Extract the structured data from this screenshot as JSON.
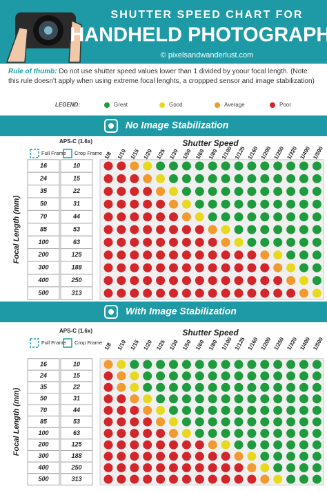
{
  "header": {
    "line1": "SHUTTER SPEED CHART FOR",
    "line2": "HANDHELD PHOTOGRAPHY",
    "website": "© pixelsandwanderlust.com"
  },
  "rule": {
    "label": "Rule of thumb:",
    "text": "Do not use shutter speed values lower than 1 divided by yoour focal length. (Note: this rule doesn't apply when using extreme focal lenghts, a croppped sensor and image stabilization)"
  },
  "legend": {
    "label": "LEGEND:",
    "items": [
      {
        "name": "Great",
        "color": "#1e9b3c"
      },
      {
        "name": "Good",
        "color": "#e8d81e"
      },
      {
        "name": "Average",
        "color": "#f29a2e"
      },
      {
        "name": "Poor",
        "color": "#d3262b"
      }
    ]
  },
  "sections": [
    {
      "title": "No Image Stabilization",
      "aps": "APS-C (1.6x)",
      "full": "Full Frame",
      "crop": "Crop Frame",
      "speed": "Shutter Speed",
      "axis": "Focal Length (mm)",
      "speeds": [
        "1/8",
        "1/10",
        "1/15",
        "1/20",
        "1/25",
        "1/30",
        "1/50",
        "1/60",
        "1/80",
        "1/100",
        "1/125",
        "1/160",
        "1/200",
        "1/250",
        "1/320",
        "1/400",
        "1/500"
      ],
      "rows": [
        {
          "full": "16",
          "crop": "10",
          "ratings": [
            3,
            3,
            2,
            1,
            0,
            0,
            0,
            0,
            0,
            0,
            0,
            0,
            0,
            0,
            0,
            0,
            0
          ]
        },
        {
          "full": "24",
          "crop": "15",
          "ratings": [
            3,
            3,
            3,
            2,
            1,
            0,
            0,
            0,
            0,
            0,
            0,
            0,
            0,
            0,
            0,
            0,
            0
          ]
        },
        {
          "full": "35",
          "crop": "22",
          "ratings": [
            3,
            3,
            3,
            3,
            2,
            1,
            0,
            0,
            0,
            0,
            0,
            0,
            0,
            0,
            0,
            0,
            0
          ]
        },
        {
          "full": "50",
          "crop": "31",
          "ratings": [
            3,
            3,
            3,
            3,
            3,
            2,
            1,
            0,
            0,
            0,
            0,
            0,
            0,
            0,
            0,
            0,
            0
          ]
        },
        {
          "full": "70",
          "crop": "44",
          "ratings": [
            3,
            3,
            3,
            3,
            3,
            3,
            2,
            1,
            0,
            0,
            0,
            0,
            0,
            0,
            0,
            0,
            0
          ]
        },
        {
          "full": "85",
          "crop": "53",
          "ratings": [
            3,
            3,
            3,
            3,
            3,
            3,
            3,
            3,
            2,
            1,
            0,
            0,
            0,
            0,
            0,
            0,
            0
          ]
        },
        {
          "full": "100",
          "crop": "63",
          "ratings": [
            3,
            3,
            3,
            3,
            3,
            3,
            3,
            3,
            3,
            2,
            1,
            0,
            0,
            0,
            0,
            0,
            0
          ]
        },
        {
          "full": "200",
          "crop": "125",
          "ratings": [
            3,
            3,
            3,
            3,
            3,
            3,
            3,
            3,
            3,
            3,
            3,
            3,
            2,
            1,
            0,
            0,
            0
          ]
        },
        {
          "full": "300",
          "crop": "188",
          "ratings": [
            3,
            3,
            3,
            3,
            3,
            3,
            3,
            3,
            3,
            3,
            3,
            3,
            3,
            2,
            1,
            0,
            0
          ]
        },
        {
          "full": "400",
          "crop": "250",
          "ratings": [
            3,
            3,
            3,
            3,
            3,
            3,
            3,
            3,
            3,
            3,
            3,
            3,
            3,
            3,
            2,
            1,
            0
          ]
        },
        {
          "full": "500",
          "crop": "313",
          "ratings": [
            3,
            3,
            3,
            3,
            3,
            3,
            3,
            3,
            3,
            3,
            3,
            3,
            3,
            3,
            3,
            2,
            1
          ]
        }
      ]
    },
    {
      "title": "With Image Stabilization",
      "aps": "APS-C (1.6x)",
      "full": "Full Frame",
      "crop": "Crop Frame",
      "speed": "Shutter Speed",
      "axis": "Focal Length (mm)",
      "speeds": [
        "1/8",
        "1/10",
        "1/15",
        "1/20",
        "1/25",
        "1/30",
        "1/50",
        "1/60",
        "1/80",
        "1/100",
        "1/125",
        "1/160",
        "1/200",
        "1/250",
        "1/320",
        "1/400",
        "1/500"
      ],
      "rows": [
        {
          "full": "16",
          "crop": "10",
          "ratings": [
            2,
            1,
            0,
            0,
            0,
            0,
            0,
            0,
            0,
            0,
            0,
            0,
            0,
            0,
            0,
            0,
            0
          ]
        },
        {
          "full": "24",
          "crop": "15",
          "ratings": [
            3,
            2,
            1,
            0,
            0,
            0,
            0,
            0,
            0,
            0,
            0,
            0,
            0,
            0,
            0,
            0,
            0
          ]
        },
        {
          "full": "35",
          "crop": "22",
          "ratings": [
            3,
            2,
            1,
            0,
            0,
            0,
            0,
            0,
            0,
            0,
            0,
            0,
            0,
            0,
            0,
            0,
            0
          ]
        },
        {
          "full": "50",
          "crop": "31",
          "ratings": [
            3,
            3,
            2,
            1,
            0,
            0,
            0,
            0,
            0,
            0,
            0,
            0,
            0,
            0,
            0,
            0,
            0
          ]
        },
        {
          "full": "70",
          "crop": "44",
          "ratings": [
            3,
            3,
            3,
            2,
            1,
            0,
            0,
            0,
            0,
            0,
            0,
            0,
            0,
            0,
            0,
            0,
            0
          ]
        },
        {
          "full": "85",
          "crop": "53",
          "ratings": [
            3,
            3,
            3,
            3,
            2,
            1,
            0,
            0,
            0,
            0,
            0,
            0,
            0,
            0,
            0,
            0,
            0
          ]
        },
        {
          "full": "100",
          "crop": "63",
          "ratings": [
            3,
            3,
            3,
            3,
            3,
            2,
            1,
            0,
            0,
            0,
            0,
            0,
            0,
            0,
            0,
            0,
            0
          ]
        },
        {
          "full": "200",
          "crop": "125",
          "ratings": [
            3,
            3,
            3,
            3,
            3,
            3,
            3,
            3,
            2,
            1,
            0,
            0,
            0,
            0,
            0,
            0,
            0
          ]
        },
        {
          "full": "300",
          "crop": "188",
          "ratings": [
            3,
            3,
            3,
            3,
            3,
            3,
            3,
            3,
            3,
            3,
            2,
            1,
            0,
            0,
            0,
            0,
            0
          ]
        },
        {
          "full": "400",
          "crop": "250",
          "ratings": [
            3,
            3,
            3,
            3,
            3,
            3,
            3,
            3,
            3,
            3,
            3,
            2,
            1,
            0,
            0,
            0,
            0
          ]
        },
        {
          "full": "500",
          "crop": "313",
          "ratings": [
            3,
            3,
            3,
            3,
            3,
            3,
            3,
            3,
            3,
            3,
            3,
            3,
            2,
            1,
            0,
            0,
            0
          ]
        }
      ]
    }
  ]
}
